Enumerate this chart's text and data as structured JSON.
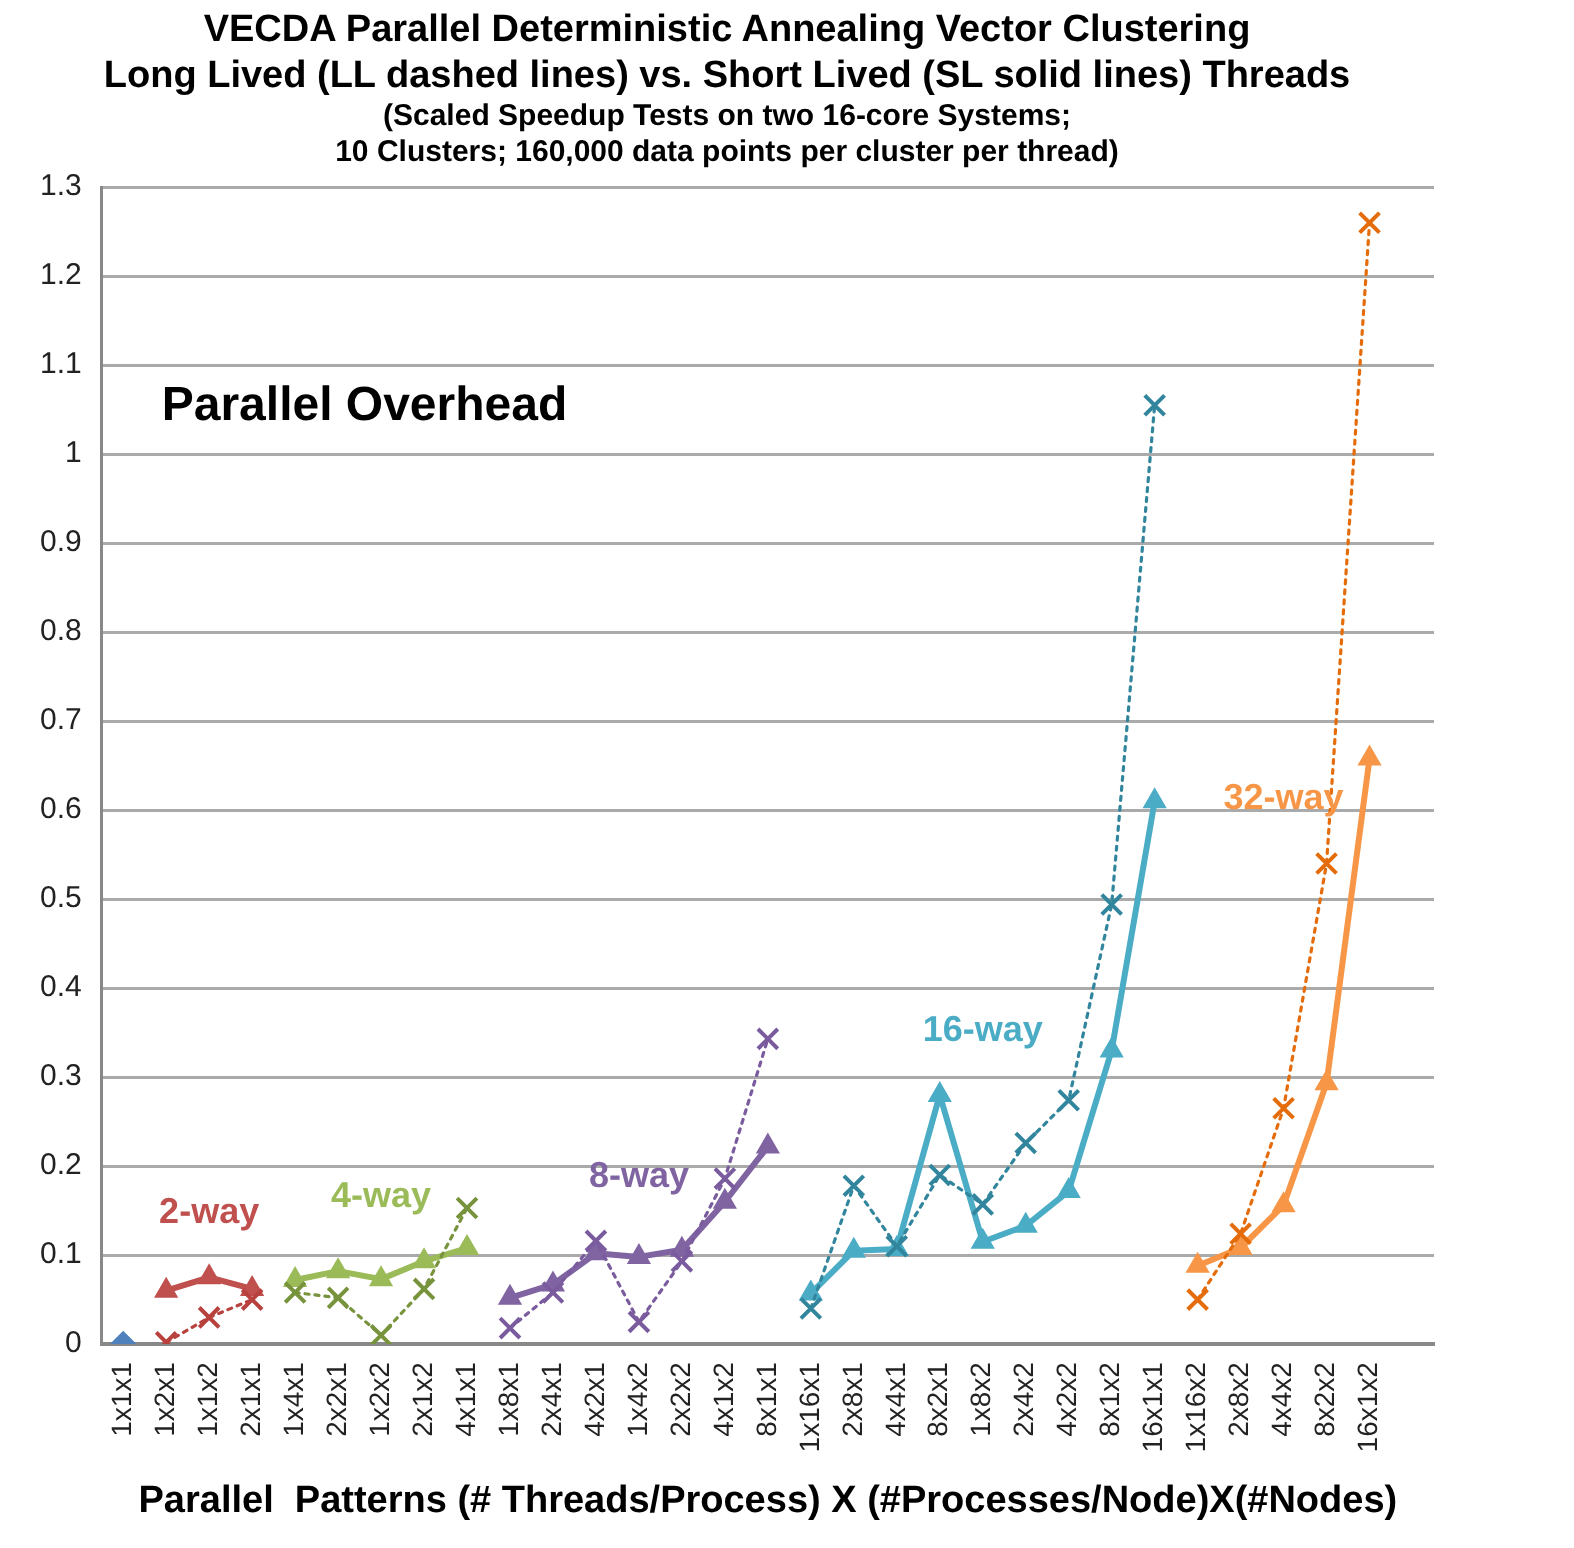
{
  "chart_data": {
    "type": "line",
    "title": "VECDA Parallel Deterministic Annealing Vector Clustering\nLong Lived (LL dashed lines) vs. Short Lived (SL solid lines) Threads",
    "subtitle": "(Scaled Speedup Tests on two 16-core Systems;\n10 Clusters; 160,000 data points per cluster per thread)",
    "xlabel": "Parallel  Patterns (# Threads/Process) X (#Processes/Node)X(#Nodes)",
    "categories": [
      "1x1x1",
      "1x2x1",
      "1x1x2",
      "2x1x1",
      "1x4x1",
      "2x2x1",
      "1x2x2",
      "2x1x2",
      "4x1x1",
      "1x8x1",
      "2x4x1",
      "4x2x1",
      "1x4x2",
      "2x2x2",
      "4x1x2",
      "8x1x1",
      "1x16x1",
      "2x8x1",
      "4x4x1",
      "8x2x1",
      "1x8x2",
      "2x4x2",
      "4x2x2",
      "8x1x2",
      "16x1x1",
      "1x16x2",
      "2x8x2",
      "4x4x2",
      "8x2x2",
      "16x1x2",
      null
    ],
    "series": [
      {
        "color": "#4f81bd",
        "marker": "diamond",
        "line_style": "none",
        "values": [
          0,
          null,
          null,
          null,
          null,
          null,
          null,
          null,
          null,
          null,
          null,
          null,
          null,
          null,
          null,
          null,
          null,
          null,
          null,
          null,
          null,
          null,
          null,
          null,
          null,
          null,
          null,
          null,
          null,
          null,
          null
        ]
      },
      {
        "name": "2-way",
        "color": "#c0504d",
        "marker": "triangle",
        "line_style": "solid",
        "values": [
          null,
          0.06,
          0.075,
          0.062,
          null,
          null,
          null,
          null,
          null,
          null,
          null,
          null,
          null,
          null,
          null,
          null,
          null,
          null,
          null,
          null,
          null,
          null,
          null,
          null,
          null,
          null,
          null,
          null,
          null,
          null,
          null
        ]
      },
      {
        "name": "4-way",
        "color": "#9bbb59",
        "marker": "triangle",
        "line_style": "solid",
        "values": [
          null,
          null,
          null,
          null,
          0.072,
          0.082,
          0.073,
          0.093,
          0.108,
          null,
          null,
          null,
          null,
          null,
          null,
          null,
          null,
          null,
          null,
          null,
          null,
          null,
          null,
          null,
          null,
          null,
          null,
          null,
          null,
          null,
          null
        ]
      },
      {
        "name": "8-way",
        "color": "#8064a2",
        "marker": "triangle",
        "line_style": "solid",
        "values": [
          null,
          null,
          null,
          null,
          null,
          null,
          null,
          null,
          null,
          0.052,
          0.067,
          0.102,
          0.098,
          0.106,
          0.16,
          0.222,
          null,
          null,
          null,
          null,
          null,
          null,
          null,
          null,
          null,
          null,
          null,
          null,
          null,
          null,
          null
        ]
      },
      {
        "name": "16-way",
        "color": "#4bacc6",
        "marker": "triangle",
        "line_style": "solid",
        "values": [
          null,
          null,
          null,
          null,
          null,
          null,
          null,
          null,
          null,
          null,
          null,
          null,
          null,
          null,
          null,
          null,
          0.057,
          0.105,
          0.107,
          0.28,
          0.115,
          0.133,
          0.172,
          0.33,
          0.61,
          null,
          null,
          null,
          null,
          null,
          null
        ]
      },
      {
        "name": "32-way",
        "color": "#f79646",
        "marker": "triangle",
        "line_style": "solid",
        "values": [
          null,
          null,
          null,
          null,
          null,
          null,
          null,
          null,
          null,
          null,
          null,
          null,
          null,
          null,
          null,
          null,
          null,
          null,
          null,
          null,
          null,
          null,
          null,
          null,
          null,
          0.088,
          0.108,
          0.156,
          0.293,
          0.658,
          null
        ]
      },
      {
        "color": "#b8413e",
        "marker": "cross",
        "line_style": "dotted",
        "values": [
          null,
          0.002,
          0.03,
          0.05,
          null,
          null,
          null,
          null,
          null,
          null,
          null,
          null,
          null,
          null,
          null,
          null,
          null,
          null,
          null,
          null,
          null,
          null,
          null,
          null,
          null,
          null,
          null,
          null,
          null,
          null,
          null
        ]
      },
      {
        "color": "#77933c",
        "marker": "cross",
        "line_style": "dotted",
        "values": [
          null,
          null,
          null,
          null,
          0.058,
          0.052,
          0.01,
          0.062,
          0.153,
          null,
          null,
          null,
          null,
          null,
          null,
          null,
          null,
          null,
          null,
          null,
          null,
          null,
          null,
          null,
          null,
          null,
          null,
          null,
          null,
          null,
          null
        ]
      },
      {
        "color": "#7a5c9e",
        "marker": "cross",
        "line_style": "dotted",
        "values": [
          null,
          null,
          null,
          null,
          null,
          null,
          null,
          null,
          null,
          0.018,
          0.058,
          0.116,
          0.025,
          0.093,
          0.186,
          0.343,
          null,
          null,
          null,
          null,
          null,
          null,
          null,
          null,
          null,
          null,
          null,
          null,
          null,
          null,
          null
        ]
      },
      {
        "color": "#31859c",
        "marker": "cross",
        "line_style": "dotted",
        "values": [
          null,
          null,
          null,
          null,
          null,
          null,
          null,
          null,
          null,
          null,
          null,
          null,
          null,
          null,
          null,
          null,
          0.04,
          0.178,
          0.11,
          0.19,
          0.157,
          0.226,
          0.274,
          0.494,
          1.055,
          null,
          null,
          null,
          null,
          null,
          null
        ]
      },
      {
        "color": "#e46c0a",
        "marker": "cross",
        "line_style": "dotted",
        "values": [
          null,
          null,
          null,
          null,
          null,
          null,
          null,
          null,
          null,
          null,
          null,
          null,
          null,
          null,
          null,
          null,
          null,
          null,
          null,
          null,
          null,
          null,
          null,
          null,
          null,
          0.05,
          0.124,
          0.265,
          0.54,
          1.26,
          null
        ]
      }
    ],
    "ylim": [
      0,
      1.3
    ],
    "yticks": [
      0,
      0.1,
      0.2,
      0.3,
      0.4,
      0.5,
      0.6,
      0.7,
      0.8,
      0.9,
      1,
      1.1,
      1.2,
      1.3
    ],
    "grid": "y",
    "legend": false,
    "annotations": [
      "Parallel Overhead"
    ]
  }
}
